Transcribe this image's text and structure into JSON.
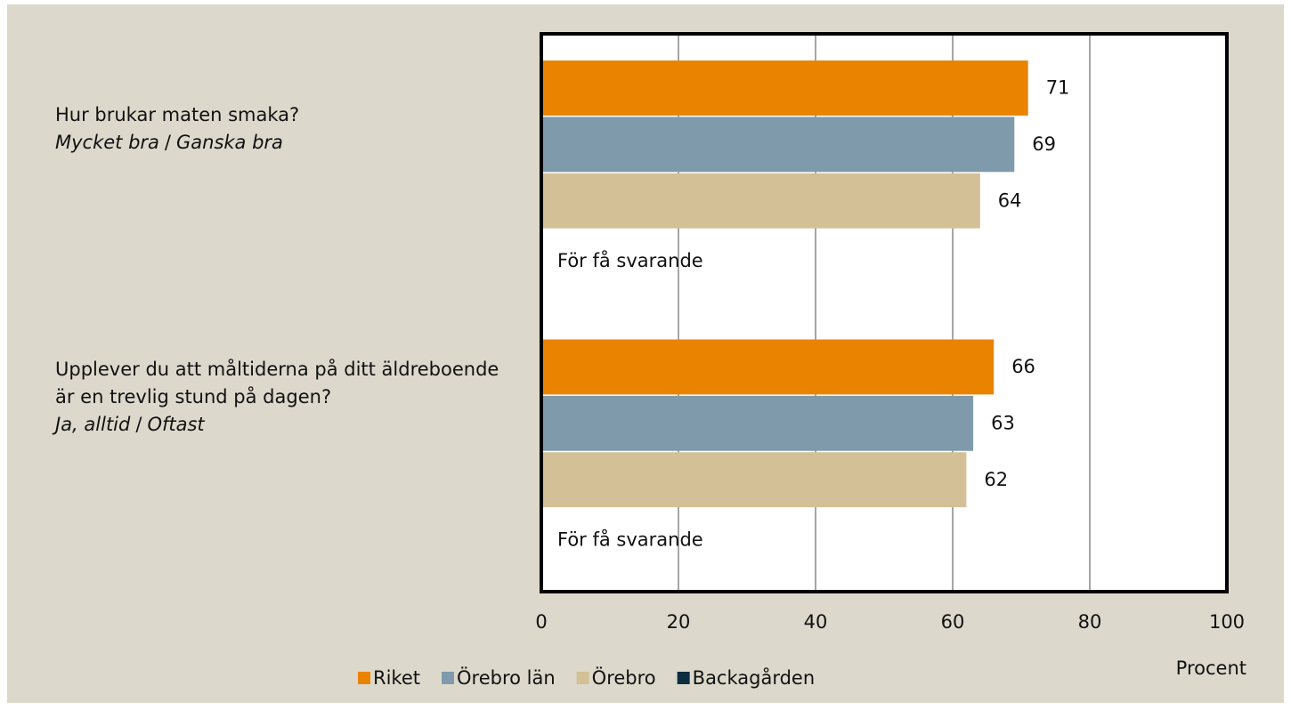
{
  "chart_data": {
    "type": "bar",
    "orientation": "horizontal",
    "categories": [
      "Hur brukar maten smaka?",
      "Upplever du att måltiderna på ditt äldreboende är en trevlig stund på dagen?"
    ],
    "category_subtitles": [
      [
        "Mycket bra",
        "/",
        "Ganska bra"
      ],
      [
        "Ja, alltid",
        "/",
        "Oftast"
      ]
    ],
    "series": [
      {
        "name": "Riket",
        "color": "#e98300",
        "values": [
          71,
          66
        ]
      },
      {
        "name": "Örebro län",
        "color": "#7f9bab",
        "values": [
          69,
          63
        ]
      },
      {
        "name": "Örebro",
        "color": "#d3c096",
        "values": [
          64,
          62
        ]
      },
      {
        "name": "Backagården",
        "color": "#0d2d40",
        "values": [
          null,
          null
        ]
      }
    ],
    "annotations": [
      "För få svarande",
      "För få svarande"
    ],
    "xlim": [
      0,
      100
    ],
    "xticks": [
      0,
      20,
      40,
      60,
      80,
      100
    ],
    "xlabel": "Procent",
    "grid": true,
    "legend": "bottom"
  }
}
